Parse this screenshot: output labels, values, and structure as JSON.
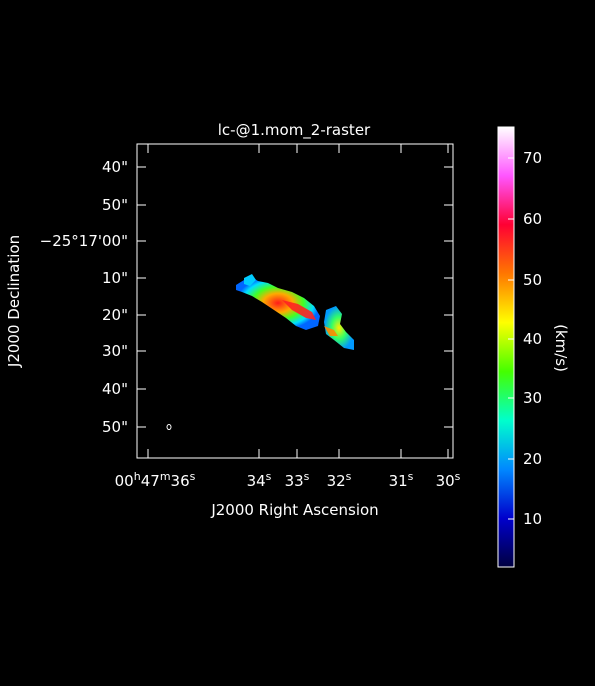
{
  "title": "lc-@1.mom_2-raster",
  "axes": {
    "xlabel": "J2000 Right Ascension",
    "ylabel": "J2000 Declination",
    "x_ticks": [
      {
        "main": "00",
        "sup1": "h",
        "mid": "47",
        "sup2": "m",
        "end": "36",
        "sup3": "s"
      },
      {
        "main": "34",
        "sup": "s"
      },
      {
        "main": "33",
        "sup": "s"
      },
      {
        "main": "32",
        "sup": "s"
      },
      {
        "main": "31",
        "sup": "s"
      },
      {
        "main": "30",
        "sup": "s"
      }
    ],
    "y_ticks": [
      {
        "text": "40\""
      },
      {
        "text": "50\""
      },
      {
        "text": "−25°17'00\""
      },
      {
        "text": "10\""
      },
      {
        "text": "20\""
      },
      {
        "text": "30\""
      },
      {
        "text": "40\""
      },
      {
        "text": "50\""
      }
    ]
  },
  "colorbar": {
    "label": "(km/s)",
    "ticks": [
      "70",
      "60",
      "50",
      "40",
      "30",
      "20",
      "10"
    ],
    "colormap": "rainbow",
    "stops": [
      "#ffffff",
      "#ff55ff",
      "#ff0033",
      "#ff7700",
      "#ffff00",
      "#44ff00",
      "#00ffcc",
      "#0088ff",
      "#0000cc",
      "#000040"
    ]
  }
}
